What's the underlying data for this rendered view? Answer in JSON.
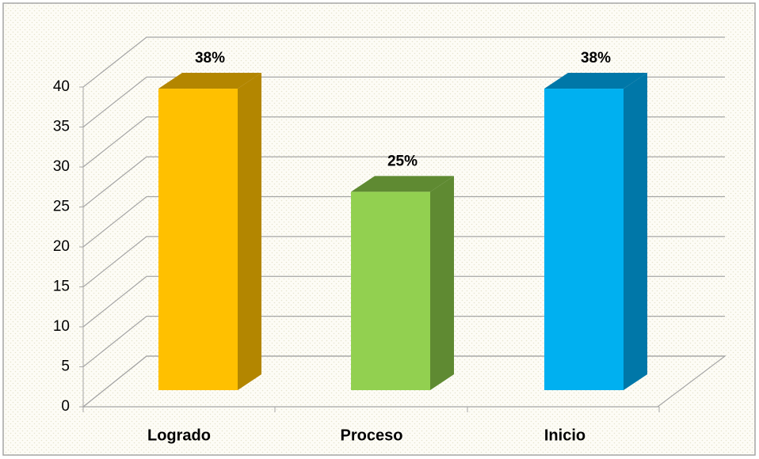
{
  "chart_data": {
    "type": "bar",
    "categories": [
      "Logrado",
      "Proceso",
      "Inicio"
    ],
    "values": [
      38,
      25,
      38
    ],
    "value_labels": [
      "38%",
      "25%",
      "38%"
    ],
    "colors": [
      "#ffc000",
      "#92d050",
      "#00b0f0"
    ],
    "side_colors": [
      "#b38600",
      "#5f8a32",
      "#0077a8"
    ],
    "ylim": [
      0,
      40
    ],
    "yticks": [
      0,
      5,
      10,
      15,
      20,
      25,
      30,
      35,
      40
    ],
    "grid": true
  }
}
